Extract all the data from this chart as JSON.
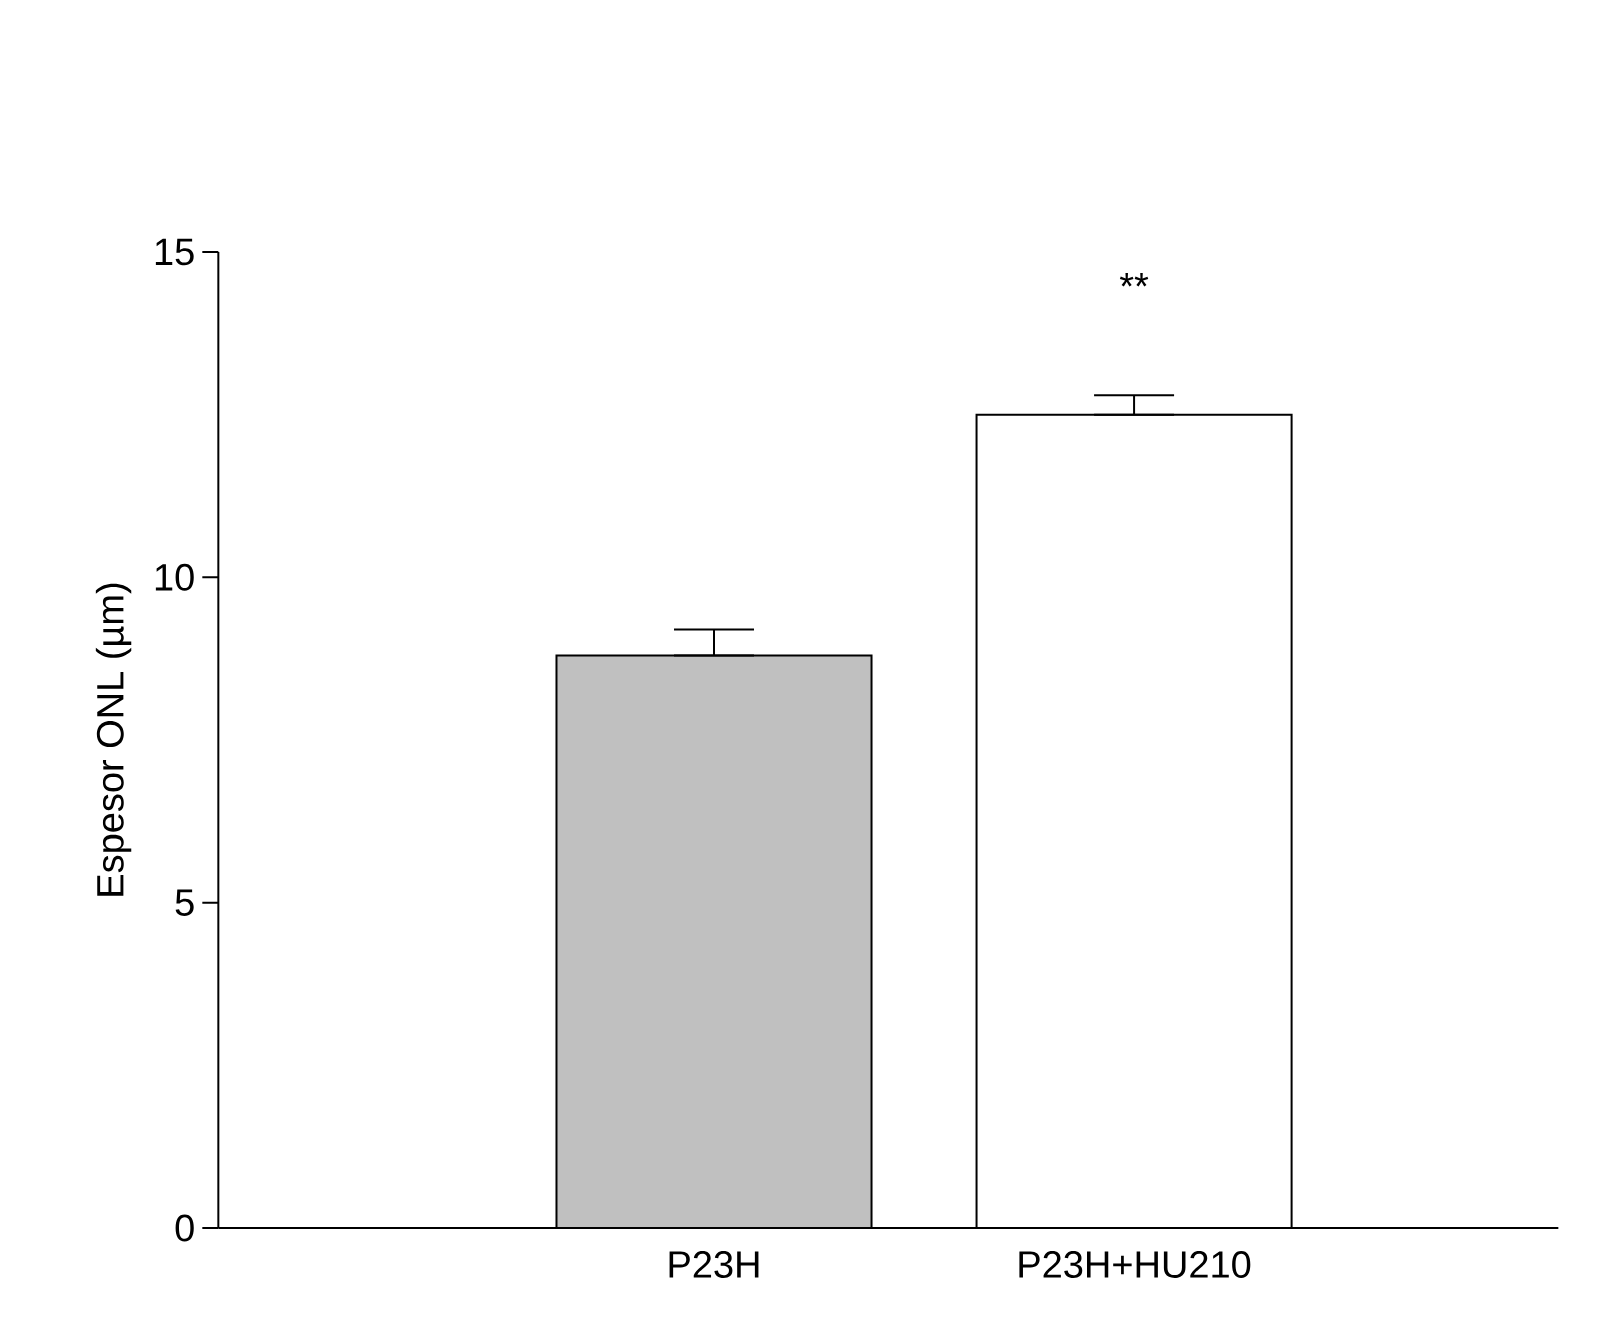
{
  "chart_data": {
    "type": "bar",
    "ylabel": "Espesor ONL  (µm)",
    "categories": [
      "P23H",
      "P23H+HU210"
    ],
    "values": [
      8.8,
      12.5
    ],
    "colors": [
      "#c0c0c0",
      "#ffffff"
    ],
    "errors": [
      [
        8.8,
        9.2
      ],
      [
        12.5,
        12.8
      ]
    ],
    "ylim": [
      0,
      15
    ],
    "yticks": [
      0,
      5,
      10,
      15
    ],
    "annotations": [
      "**"
    ]
  }
}
